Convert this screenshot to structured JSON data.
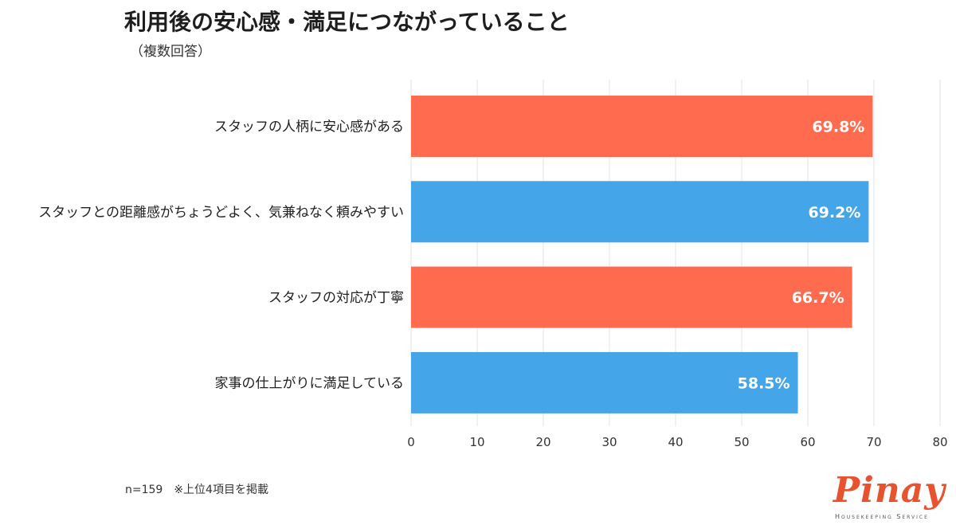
{
  "chart_data": {
    "type": "bar",
    "orientation": "horizontal",
    "title": "利用後の安心感・満足につながっていること",
    "subtitle": "（複数回答）",
    "categories": [
      "スタッフの人柄に安心感がある",
      "スタッフとの距離感がちょうどよく、気兼ねなく頼みやすい",
      "スタッフの対応が丁寧",
      "家事の仕上がりに満足している"
    ],
    "values": [
      69.8,
      69.2,
      66.7,
      58.5
    ],
    "value_labels": [
      "69.8%",
      "69.2%",
      "66.7%",
      "58.5%"
    ],
    "colors": [
      "#ff6b4e",
      "#44a6e8",
      "#ff6b4e",
      "#44a6e8"
    ],
    "xlim": [
      0,
      80
    ],
    "xticks": [
      0,
      10,
      20,
      30,
      40,
      50,
      60,
      70,
      80
    ],
    "grid": true
  },
  "footnote": "n=159　※上位4項目を掲載",
  "logo": {
    "word": "Pinay",
    "tagline": "Housekeeping Service",
    "color": "#e8532f"
  }
}
